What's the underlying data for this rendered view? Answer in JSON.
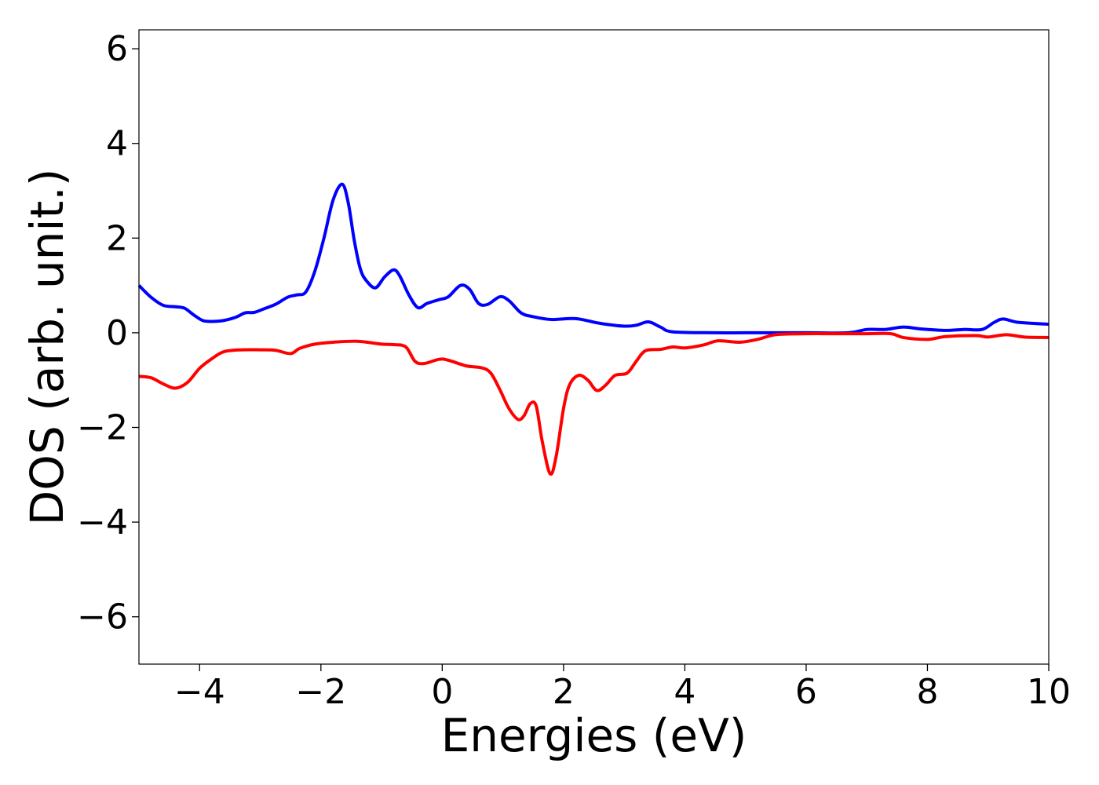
{
  "chart_data": {
    "type": "line",
    "title": "",
    "xlabel": "Energies (eV)",
    "ylabel": "DOS (arb. unit.)",
    "xlim": [
      -5,
      10
    ],
    "ylim": [
      -7,
      6.4
    ],
    "x_ticks": [
      -4,
      -2,
      0,
      2,
      4,
      6,
      8,
      10
    ],
    "y_ticks": [
      -6,
      -4,
      -2,
      0,
      2,
      4,
      6
    ],
    "x_tick_labels": [
      "−4",
      "−2",
      "0",
      "2",
      "4",
      "6",
      "8",
      "10"
    ],
    "y_tick_labels": [
      "−6",
      "−4",
      "−2",
      "0",
      "2",
      "4",
      "6"
    ],
    "grid": false,
    "legend": "none",
    "series": [
      {
        "color": "#0000ff",
        "points": [
          [
            -5.0,
            1.0
          ],
          [
            -4.8,
            0.75
          ],
          [
            -4.6,
            0.58
          ],
          [
            -4.4,
            0.55
          ],
          [
            -4.25,
            0.52
          ],
          [
            -4.1,
            0.38
          ],
          [
            -3.95,
            0.26
          ],
          [
            -3.8,
            0.24
          ],
          [
            -3.6,
            0.26
          ],
          [
            -3.4,
            0.33
          ],
          [
            -3.25,
            0.42
          ],
          [
            -3.1,
            0.43
          ],
          [
            -2.95,
            0.5
          ],
          [
            -2.75,
            0.6
          ],
          [
            -2.55,
            0.75
          ],
          [
            -2.4,
            0.8
          ],
          [
            -2.25,
            0.86
          ],
          [
            -2.1,
            1.3
          ],
          [
            -1.95,
            2.0
          ],
          [
            -1.8,
            2.8
          ],
          [
            -1.65,
            3.14
          ],
          [
            -1.55,
            2.75
          ],
          [
            -1.45,
            1.95
          ],
          [
            -1.35,
            1.35
          ],
          [
            -1.25,
            1.1
          ],
          [
            -1.1,
            0.95
          ],
          [
            -0.95,
            1.18
          ],
          [
            -0.8,
            1.33
          ],
          [
            -0.7,
            1.2
          ],
          [
            -0.55,
            0.8
          ],
          [
            -0.4,
            0.53
          ],
          [
            -0.25,
            0.62
          ],
          [
            -0.05,
            0.7
          ],
          [
            0.1,
            0.76
          ],
          [
            0.3,
            1.0
          ],
          [
            0.45,
            0.92
          ],
          [
            0.6,
            0.62
          ],
          [
            0.75,
            0.6
          ],
          [
            0.95,
            0.76
          ],
          [
            1.1,
            0.68
          ],
          [
            1.3,
            0.42
          ],
          [
            1.5,
            0.34
          ],
          [
            1.8,
            0.28
          ],
          [
            2.2,
            0.3
          ],
          [
            2.6,
            0.2
          ],
          [
            3.0,
            0.14
          ],
          [
            3.2,
            0.16
          ],
          [
            3.4,
            0.23
          ],
          [
            3.6,
            0.12
          ],
          [
            3.8,
            0.02
          ],
          [
            4.5,
            0.0
          ],
          [
            5.0,
            0.0
          ],
          [
            6.0,
            0.0
          ],
          [
            6.7,
            0.0
          ],
          [
            7.0,
            0.07
          ],
          [
            7.3,
            0.07
          ],
          [
            7.6,
            0.12
          ],
          [
            7.9,
            0.08
          ],
          [
            8.3,
            0.05
          ],
          [
            8.6,
            0.07
          ],
          [
            8.9,
            0.07
          ],
          [
            9.1,
            0.22
          ],
          [
            9.25,
            0.29
          ],
          [
            9.5,
            0.22
          ],
          [
            10.0,
            0.18
          ]
        ]
      },
      {
        "color": "#ff0000",
        "points": [
          [
            -5.0,
            -0.92
          ],
          [
            -4.8,
            -0.95
          ],
          [
            -4.6,
            -1.08
          ],
          [
            -4.4,
            -1.17
          ],
          [
            -4.2,
            -1.05
          ],
          [
            -4.0,
            -0.75
          ],
          [
            -3.8,
            -0.55
          ],
          [
            -3.6,
            -0.4
          ],
          [
            -3.3,
            -0.36
          ],
          [
            -3.0,
            -0.36
          ],
          [
            -2.75,
            -0.37
          ],
          [
            -2.5,
            -0.44
          ],
          [
            -2.35,
            -0.33
          ],
          [
            -2.1,
            -0.24
          ],
          [
            -1.8,
            -0.2
          ],
          [
            -1.4,
            -0.18
          ],
          [
            -1.0,
            -0.24
          ],
          [
            -0.8,
            -0.25
          ],
          [
            -0.6,
            -0.3
          ],
          [
            -0.45,
            -0.6
          ],
          [
            -0.3,
            -0.65
          ],
          [
            -0.05,
            -0.56
          ],
          [
            0.1,
            -0.58
          ],
          [
            0.4,
            -0.7
          ],
          [
            0.65,
            -0.74
          ],
          [
            0.8,
            -0.85
          ],
          [
            0.95,
            -1.2
          ],
          [
            1.1,
            -1.6
          ],
          [
            1.25,
            -1.83
          ],
          [
            1.35,
            -1.75
          ],
          [
            1.45,
            -1.5
          ],
          [
            1.55,
            -1.55
          ],
          [
            1.65,
            -2.3
          ],
          [
            1.78,
            -2.98
          ],
          [
            1.88,
            -2.6
          ],
          [
            2.0,
            -1.6
          ],
          [
            2.1,
            -1.1
          ],
          [
            2.25,
            -0.9
          ],
          [
            2.4,
            -1.0
          ],
          [
            2.55,
            -1.22
          ],
          [
            2.7,
            -1.1
          ],
          [
            2.85,
            -0.9
          ],
          [
            3.05,
            -0.85
          ],
          [
            3.2,
            -0.6
          ],
          [
            3.35,
            -0.38
          ],
          [
            3.6,
            -0.35
          ],
          [
            3.8,
            -0.3
          ],
          [
            4.0,
            -0.32
          ],
          [
            4.3,
            -0.26
          ],
          [
            4.55,
            -0.17
          ],
          [
            4.9,
            -0.2
          ],
          [
            5.2,
            -0.14
          ],
          [
            5.5,
            -0.04
          ],
          [
            6.0,
            -0.02
          ],
          [
            6.5,
            -0.02
          ],
          [
            7.0,
            -0.02
          ],
          [
            7.4,
            -0.02
          ],
          [
            7.6,
            -0.1
          ],
          [
            8.0,
            -0.14
          ],
          [
            8.3,
            -0.08
          ],
          [
            8.8,
            -0.06
          ],
          [
            9.0,
            -0.09
          ],
          [
            9.3,
            -0.04
          ],
          [
            9.6,
            -0.09
          ],
          [
            10.0,
            -0.1
          ]
        ]
      }
    ]
  }
}
